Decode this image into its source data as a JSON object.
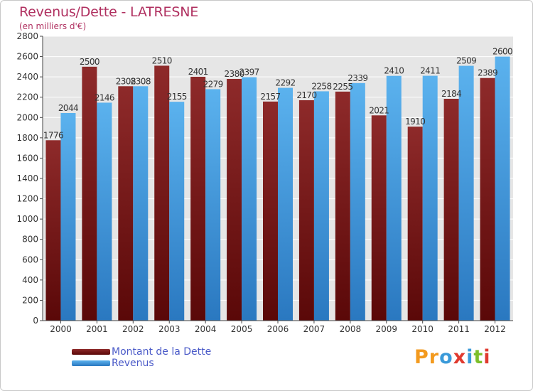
{
  "header": {
    "title": "Revenus/Dette - LATRESNE",
    "subtitle": "(en milliers d'€)"
  },
  "legend": {
    "items": [
      {
        "label": "Montant de la Dette",
        "color": "#7a1a1a"
      },
      {
        "label": "Revenus",
        "color": "#4aa0e0"
      }
    ]
  },
  "brand": {
    "letters": [
      "P",
      "r",
      "o",
      "x",
      "i",
      "t",
      "i"
    ],
    "colors": [
      "#f39a1e",
      "#f39a1e",
      "#3a9ad9",
      "#e03a2f",
      "#3a9ad9",
      "#7cbf2a",
      "#e03a2f"
    ]
  },
  "chart_data": {
    "type": "bar",
    "title": "Revenus/Dette - LATRESNE",
    "subtitle": "(en milliers d'€)",
    "categories": [
      "2000",
      "2001",
      "2002",
      "2003",
      "2004",
      "2005",
      "2006",
      "2007",
      "2008",
      "2009",
      "2010",
      "2011",
      "2012"
    ],
    "series": [
      {
        "name": "Montant de la Dette",
        "color": "#7a1a1a",
        "values": [
          1776,
          2500,
          2308,
          2510,
          2401,
          2380,
          2157,
          2170,
          2255,
          2021,
          1910,
          2184,
          2389
        ]
      },
      {
        "name": "Revenus",
        "color": "#4aa0e0",
        "values": [
          2044,
          2146,
          2308,
          2155,
          2279,
          2397,
          2292,
          2258,
          2339,
          2410,
          2411,
          2509,
          2600
        ]
      }
    ],
    "ylim": [
      0,
      2800
    ],
    "yticks": [
      0,
      200,
      400,
      600,
      800,
      1000,
      1200,
      1400,
      1600,
      1800,
      2000,
      2200,
      2400,
      2600,
      2800
    ],
    "grid": true,
    "legend_position": "bottom-left"
  }
}
